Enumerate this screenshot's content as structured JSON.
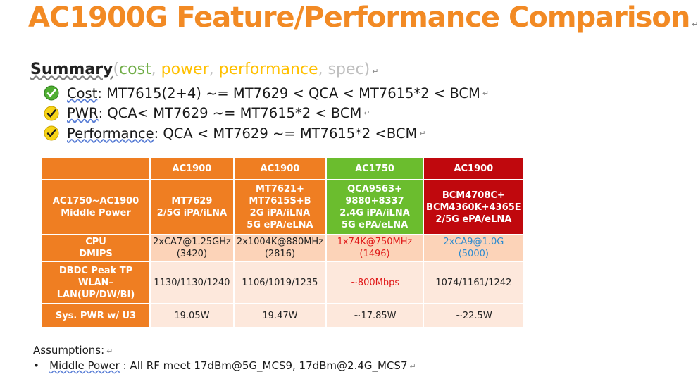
{
  "title": "AC1900G Feature/Performance Comparison",
  "summary": {
    "heading": "Summary",
    "paren_open": "(",
    "cost_word": "cost",
    "power_word": "power",
    "performance_word": "performance",
    "spec_word": "spec",
    "paren_close": ")",
    "comma": ", ",
    "colors": {
      "cost": "#70ad47",
      "power": "#ffc000",
      "performance": "#ffc000",
      "spec": "#bfbfbf"
    }
  },
  "bullets": [
    {
      "icon": "green-check-icon",
      "label": "Cost",
      "rest": " : MT7615(2+4) ~= MT7629 < QCA < MT7615*2 < BCM"
    },
    {
      "icon": "yellow-check-icon",
      "label": "PWR",
      "rest": " : QCA< MT7629 ~= MT7615*2 < BCM"
    },
    {
      "icon": "yellow-check-icon",
      "label": "Performance",
      "rest": " : QCA < MT7629 ~= MT7615*2 <BCM"
    }
  ],
  "table": {
    "header": [
      "",
      "AC1900",
      "AC1900",
      "AC1750",
      "AC1900"
    ],
    "row_chip": {
      "label": [
        "AC1750~AC1900",
        "Middle Power"
      ],
      "c1": [
        "MT7629",
        "2/5G iPA/iLNA"
      ],
      "c2": [
        "MT7621+",
        "MT7615S+B",
        "2G iPA/iLNA",
        "5G ePA/eLNA"
      ],
      "c3": [
        "QCA9563+",
        "9880+8337",
        "2.4G iPA/iLNA",
        "5G ePA/eLNA"
      ],
      "c4": [
        "BCM4708C+",
        "BCM4360K+4365E",
        "2/5G ePA/eLNA"
      ]
    },
    "row_cpu": {
      "label": [
        "CPU",
        "DMIPS"
      ],
      "c1": [
        "2xCA7@1.25GHz",
        "(3420)"
      ],
      "c2": [
        "2x1004K@880MHz",
        "(2816)"
      ],
      "c3": [
        "1x74K@750MHz",
        "(1496)"
      ],
      "c4": [
        "2xCA9@1.0G",
        "(5000)"
      ]
    },
    "row_tp": {
      "label": [
        "DBDC Peak TP",
        "WLAN–",
        "LAN(UP/DW/BI)"
      ],
      "c1": "1130/1130/1240",
      "c2": "1106/1019/1235",
      "c3": "~800Mbps",
      "c4": "1074/1161/1242"
    },
    "row_pwr": {
      "label": "Sys. PWR w/ U3",
      "c1": "19.05W",
      "c2": "19.47W",
      "c3": "~17.85W",
      "c4": "~22.5W"
    }
  },
  "assumptions": {
    "heading": "Assumptions:",
    "bullet": "•",
    "item_label": "Middle Power",
    "item_rest": " : All RF meet 17dBm@5G_MCS9, 17dBm@2.4G_MCS7"
  },
  "mark": "↵"
}
